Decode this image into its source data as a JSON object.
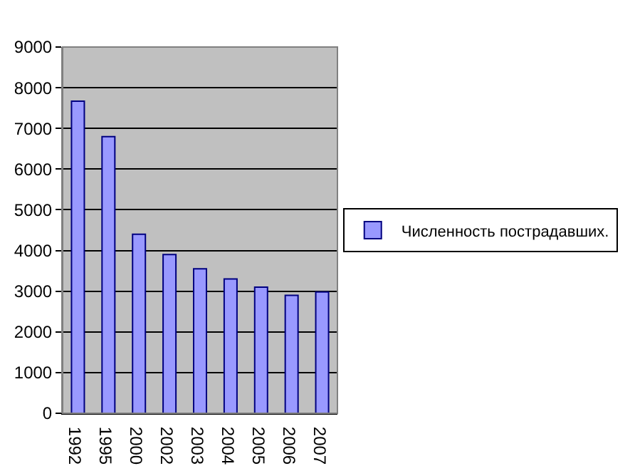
{
  "chart_data": {
    "type": "bar",
    "categories": [
      "1992",
      "1995",
      "2000",
      "2002",
      "2003",
      "2004",
      "2005",
      "2006",
      "2007"
    ],
    "series": [
      {
        "name": "Численность пострадавших.",
        "color": "#9999ff",
        "values": [
          7670,
          6800,
          4400,
          3900,
          3550,
          3300,
          3100,
          2900,
          2980
        ]
      }
    ],
    "ylim": [
      0,
      9000
    ],
    "yticks": [
      0,
      1000,
      2000,
      3000,
      4000,
      5000,
      6000,
      7000,
      8000,
      9000
    ],
    "grid": "y",
    "legend": "right"
  }
}
